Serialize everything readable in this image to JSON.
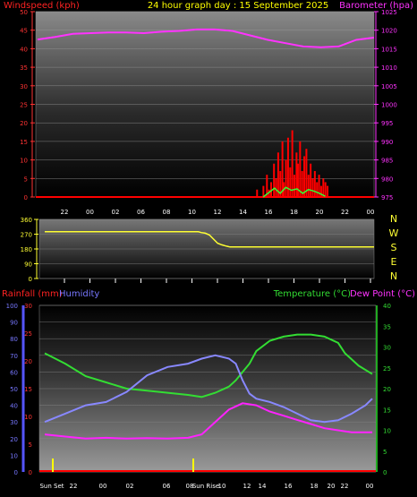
{
  "header": {
    "title": "24 hour graph day : 15 September 2025"
  },
  "colors": {
    "wind": "#ff0000",
    "gust": "#33ff33",
    "baro": "#ff33ff",
    "rain": "#ff0000",
    "humidity": "#7777ff",
    "temperature": "#33dd33",
    "dewpoint": "#ff22ff",
    "direction": "#ffff33",
    "title": "#ffff00",
    "time": "#ffffff"
  },
  "chart_data": [
    {
      "type": "line",
      "panel": "wind-baro",
      "left_axis_label": "Windspeed (kph)",
      "right_axis_label": "Barometer (hpa)",
      "left_ylim": [
        0,
        50
      ],
      "right_ylim": [
        975,
        1025
      ],
      "left_ticks": [
        "0",
        "5",
        "10",
        "15",
        "20",
        "25",
        "30",
        "35",
        "40",
        "45",
        "50"
      ],
      "right_ticks": [
        "975",
        "980",
        "985",
        "990",
        "995",
        "1000",
        "1005",
        "1010",
        "1015",
        "1020",
        "1025"
      ],
      "x_ticks": [
        "22",
        "00",
        "02",
        "06",
        "08",
        "10",
        "12",
        "14",
        "16",
        "18",
        "20",
        "22",
        "00"
      ],
      "barometer": [
        1017.5,
        1018.2,
        1019.0,
        1019.2,
        1019.4,
        1019.4,
        1019.2,
        1019.6,
        1019.8,
        1020.2,
        1020.2,
        1019.8,
        1018.6,
        1017.4,
        1016.5,
        1015.6,
        1015.4,
        1015.6,
        1017.4,
        1018.0
      ],
      "windspeed_bars": [
        [
          11.2,
          0
        ],
        [
          11.5,
          0
        ],
        [
          11.7,
          2
        ],
        [
          11.9,
          0
        ],
        [
          12.15,
          3
        ],
        [
          12.4,
          6
        ],
        [
          12.55,
          2
        ],
        [
          12.7,
          4
        ],
        [
          12.9,
          9
        ],
        [
          13.05,
          5
        ],
        [
          13.2,
          12
        ],
        [
          13.35,
          7
        ],
        [
          13.5,
          15
        ],
        [
          13.6,
          4
        ],
        [
          13.75,
          10
        ],
        [
          13.9,
          16
        ],
        [
          14.05,
          8
        ],
        [
          14.2,
          18
        ],
        [
          14.35,
          6
        ],
        [
          14.5,
          12
        ],
        [
          14.6,
          9
        ],
        [
          14.75,
          15
        ],
        [
          14.9,
          7
        ],
        [
          15.05,
          11
        ],
        [
          15.2,
          13
        ],
        [
          15.35,
          6
        ],
        [
          15.5,
          9
        ],
        [
          15.65,
          5
        ],
        [
          15.8,
          7
        ],
        [
          15.95,
          4
        ],
        [
          16.1,
          6
        ],
        [
          16.25,
          3
        ],
        [
          16.4,
          5
        ],
        [
          16.55,
          4
        ],
        [
          16.7,
          3
        ]
      ],
      "gust": [
        [
          12.2,
          0
        ],
        [
          12.6,
          1.2
        ],
        [
          13.0,
          2.4
        ],
        [
          13.4,
          1.0
        ],
        [
          13.8,
          2.6
        ],
        [
          14.2,
          1.8
        ],
        [
          14.6,
          2.2
        ],
        [
          15.0,
          1.0
        ],
        [
          15.4,
          2.0
        ],
        [
          15.8,
          1.6
        ],
        [
          16.2,
          1.0
        ],
        [
          16.6,
          0.2
        ]
      ]
    },
    {
      "type": "line",
      "panel": "wind-direction",
      "left_ticks": [
        "0",
        "90",
        "180",
        "270",
        "360"
      ],
      "compass": [
        "N",
        "W",
        "S",
        "E",
        "N"
      ],
      "ylim": [
        0,
        360
      ],
      "x_ticks": [
        "22",
        "00",
        "02",
        "06",
        "08",
        "10",
        "12",
        "14",
        "16",
        "18",
        "20",
        "22",
        "00"
      ],
      "direction": [
        [
          0,
          285
        ],
        [
          11.2,
          285
        ],
        [
          11.4,
          280
        ],
        [
          11.7,
          276
        ],
        [
          12.0,
          265
        ],
        [
          12.3,
          240
        ],
        [
          12.6,
          215
        ],
        [
          12.9,
          205
        ],
        [
          13.2,
          198
        ],
        [
          13.5,
          192
        ],
        [
          24,
          192
        ]
      ]
    },
    {
      "type": "line",
      "panel": "temp-hum-rain",
      "series_labels": {
        "rain": "Rainfall (mm)",
        "humidity": "Humidity",
        "temperature": "Temperature (°C)",
        "dewpoint": "Dew Point (°C)"
      },
      "rain_ticks": [
        "0",
        "5",
        "10",
        "15",
        "20",
        "25",
        "30"
      ],
      "humidity_ticks": [
        "0",
        "10",
        "20",
        "30",
        "40",
        "50",
        "60",
        "70",
        "80",
        "90",
        "100"
      ],
      "temp_ticks": [
        "0",
        "5",
        "10",
        "15",
        "20",
        "25",
        "30",
        "35",
        "40"
      ],
      "humidity_ylim": [
        0,
        100
      ],
      "temp_ylim": [
        0,
        40
      ],
      "x_ticks": [
        "Sun Set",
        "22",
        "00",
        "02",
        "06",
        "08",
        "Sun Rise",
        "10",
        "12",
        "14",
        "16",
        "18",
        "20",
        "22",
        "00"
      ],
      "temperature": [
        [
          0,
          28.5
        ],
        [
          1.5,
          26
        ],
        [
          3,
          23
        ],
        [
          4.5,
          21.5
        ],
        [
          6,
          20
        ],
        [
          7.5,
          19.5
        ],
        [
          9,
          19
        ],
        [
          10.5,
          18.5
        ],
        [
          11.5,
          18
        ],
        [
          12.5,
          19
        ],
        [
          13.5,
          20.5
        ],
        [
          14,
          22
        ],
        [
          14.5,
          24
        ],
        [
          15,
          26
        ],
        [
          15.5,
          29
        ],
        [
          16.5,
          31.5
        ],
        [
          17.5,
          32.5
        ],
        [
          18.5,
          33
        ],
        [
          19.5,
          33
        ],
        [
          20.5,
          32.5
        ],
        [
          21.5,
          31
        ],
        [
          22,
          28.5
        ],
        [
          22.5,
          27
        ],
        [
          23,
          25.5
        ],
        [
          24,
          23.5
        ]
      ],
      "humidity": [
        [
          0,
          30
        ],
        [
          1.5,
          35
        ],
        [
          3,
          40
        ],
        [
          4.5,
          42
        ],
        [
          6,
          48
        ],
        [
          7.5,
          58
        ],
        [
          9,
          63
        ],
        [
          10.5,
          65
        ],
        [
          11.5,
          68
        ],
        [
          12.5,
          70
        ],
        [
          13.5,
          68
        ],
        [
          14,
          65
        ],
        [
          14.5,
          55
        ],
        [
          15,
          47
        ],
        [
          15.5,
          44
        ],
        [
          16.5,
          42
        ],
        [
          17.5,
          39
        ],
        [
          18.5,
          35
        ],
        [
          19.5,
          31
        ],
        [
          20.5,
          30
        ],
        [
          21.5,
          31
        ],
        [
          22.5,
          35
        ],
        [
          23.5,
          40
        ],
        [
          24,
          44
        ]
      ],
      "dewpoint": [
        [
          0,
          9
        ],
        [
          1.5,
          8.5
        ],
        [
          3,
          8
        ],
        [
          4.5,
          8.2
        ],
        [
          6,
          8
        ],
        [
          7.5,
          8.1
        ],
        [
          9,
          8
        ],
        [
          10.5,
          8.2
        ],
        [
          11.5,
          9
        ],
        [
          12.5,
          12
        ],
        [
          13.5,
          15
        ],
        [
          14.5,
          16.5
        ],
        [
          15.5,
          16
        ],
        [
          16.5,
          14.5
        ],
        [
          17.5,
          13.5
        ],
        [
          18.5,
          12.5
        ],
        [
          19.5,
          11.5
        ],
        [
          20.5,
          10.5
        ],
        [
          21.5,
          10
        ],
        [
          22.5,
          9.5
        ],
        [
          24,
          9.5
        ]
      ],
      "rain": [
        [
          0,
          0
        ],
        [
          24,
          0
        ]
      ]
    }
  ]
}
